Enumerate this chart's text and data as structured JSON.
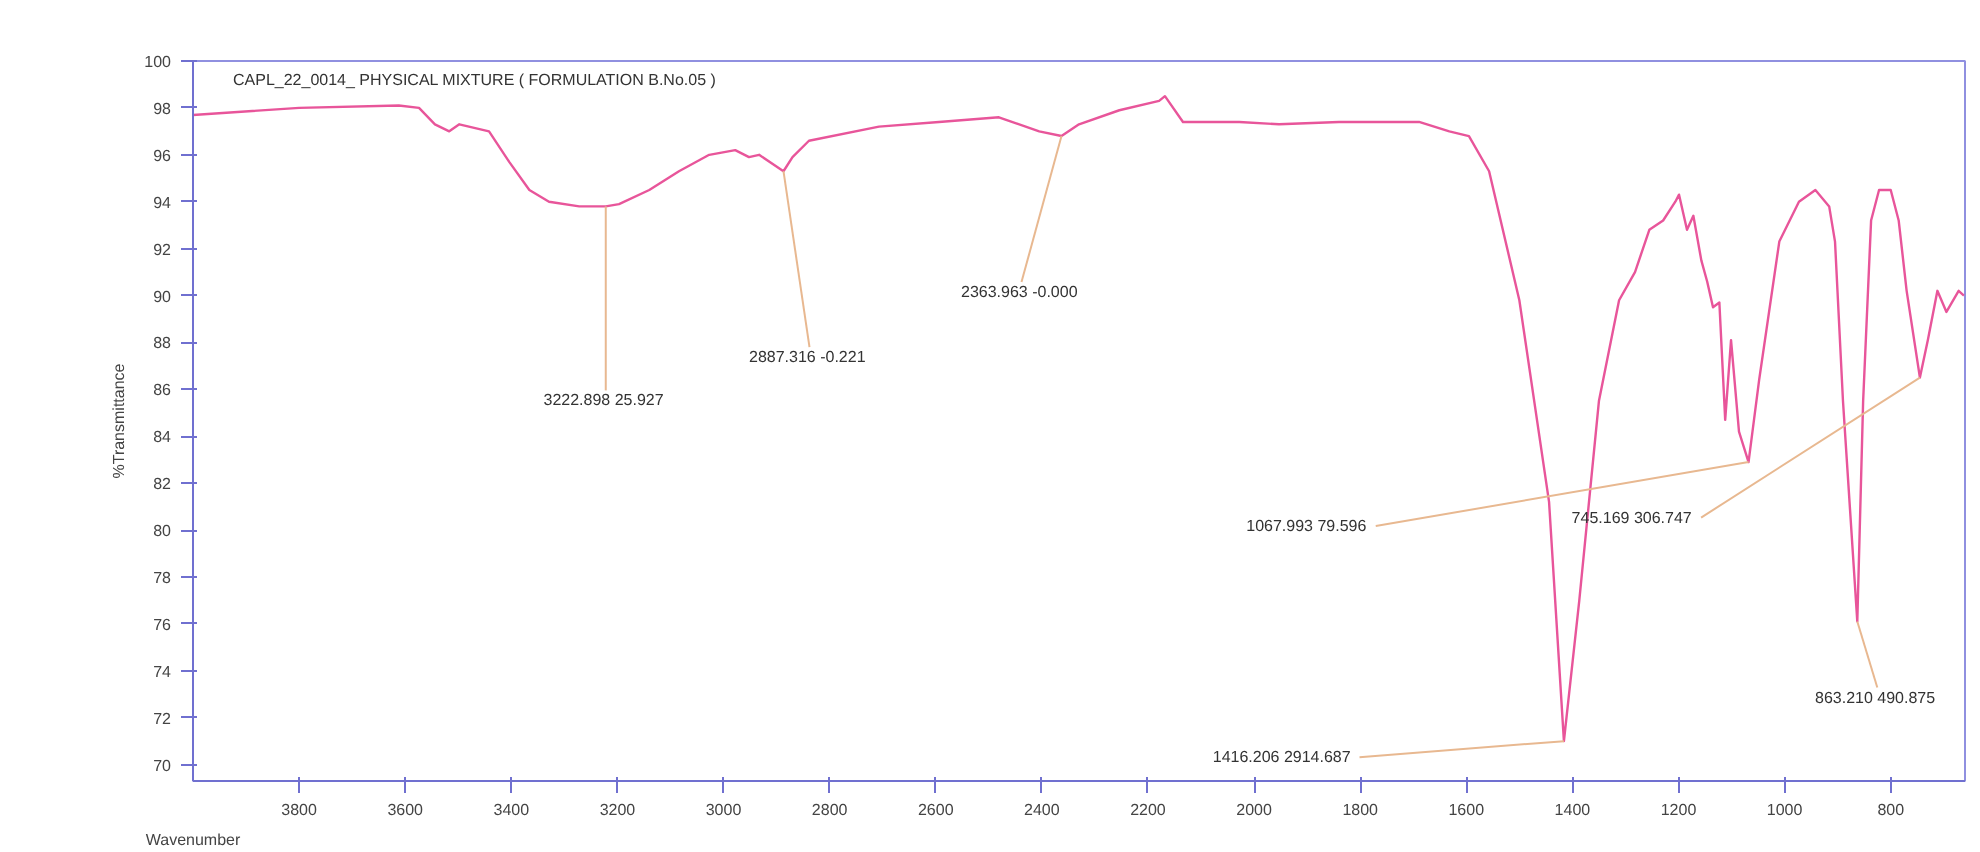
{
  "chart_data": {
    "type": "line",
    "title": "CAPL_22_0014_  PHYSICAL MIXTURE  ( FORMULATION B.No.05 )",
    "xlabel": "Wavenumber",
    "ylabel": "%Transmittance",
    "xlim": [
      4000,
      660
    ],
    "ylim": [
      69.3,
      100
    ],
    "xticks": [
      3800,
      3600,
      3400,
      3200,
      3000,
      2800,
      2600,
      2400,
      2200,
      2000,
      1800,
      1600,
      1400,
      1200,
      1000,
      800
    ],
    "yticks": [
      70,
      72,
      74,
      76,
      78,
      80,
      82,
      84,
      86,
      88,
      90,
      92,
      94,
      96,
      98,
      100
    ],
    "grid": false,
    "marker": "none",
    "line_style": "solid",
    "series": [
      {
        "color": "#e8559a",
        "x": [
          4000,
          3800,
          3612,
          3574,
          3544,
          3517,
          3498,
          3442,
          3404,
          3366,
          3329,
          3272,
          3222,
          3197,
          3140,
          3084,
          3027,
          2978,
          2952,
          2933,
          2887,
          2870,
          2839,
          2707,
          2594,
          2481,
          2405,
          2363,
          2330,
          2254,
          2179,
          2168,
          2134,
          2028,
          1953,
          1840,
          1689,
          1632,
          1595,
          1557,
          1500,
          1444,
          1416,
          1387,
          1350,
          1312,
          1282,
          1255,
          1229,
          1206,
          1199,
          1184,
          1172,
          1157,
          1146,
          1135,
          1123,
          1112,
          1101,
          1086,
          1068,
          1048,
          1010,
          973,
          942,
          916,
          905,
          890,
          863,
          852,
          837,
          822,
          800,
          785,
          770,
          745,
          730,
          712,
          695,
          672,
          662
        ],
        "values": [
          97.7,
          98.0,
          98.1,
          98.0,
          97.3,
          97.0,
          97.3,
          97.0,
          95.7,
          94.5,
          94.0,
          93.8,
          93.8,
          93.9,
          94.5,
          95.3,
          96.0,
          96.2,
          95.9,
          96.0,
          95.3,
          95.9,
          96.6,
          97.2,
          97.4,
          97.6,
          97.0,
          96.8,
          97.3,
          97.9,
          98.3,
          98.5,
          97.4,
          97.4,
          97.3,
          97.4,
          97.4,
          97.0,
          96.8,
          95.3,
          89.8,
          81.2,
          71.0,
          77.0,
          85.5,
          89.8,
          91.0,
          92.8,
          93.2,
          94.0,
          94.3,
          92.8,
          93.4,
          91.5,
          90.6,
          89.5,
          89.7,
          84.7,
          88.1,
          84.2,
          82.9,
          86.4,
          92.3,
          94.0,
          94.5,
          93.8,
          92.3,
          85.5,
          76.1,
          85.5,
          93.2,
          94.5,
          94.5,
          93.2,
          90.2,
          86.5,
          88.1,
          90.2,
          89.3,
          90.2,
          90.0
        ]
      }
    ],
    "annotations": [
      {
        "text": "3222.898  25.927",
        "x": 3222,
        "y": 93.8
      },
      {
        "text": "2887.316  -0.221",
        "x": 2887,
        "y": 95.3
      },
      {
        "text": "2363.963  -0.000",
        "x": 2363,
        "y": 96.8
      },
      {
        "text": "1067.993  79.596",
        "x": 1068,
        "y": 82.9
      },
      {
        "text": "745.169  306.747",
        "x": 745,
        "y": 86.5
      },
      {
        "text": "863.210  490.875",
        "x": 863,
        "y": 76.1
      },
      {
        "text": "1416.206  2914.687",
        "x": 1416,
        "y": 71.0
      }
    ]
  }
}
